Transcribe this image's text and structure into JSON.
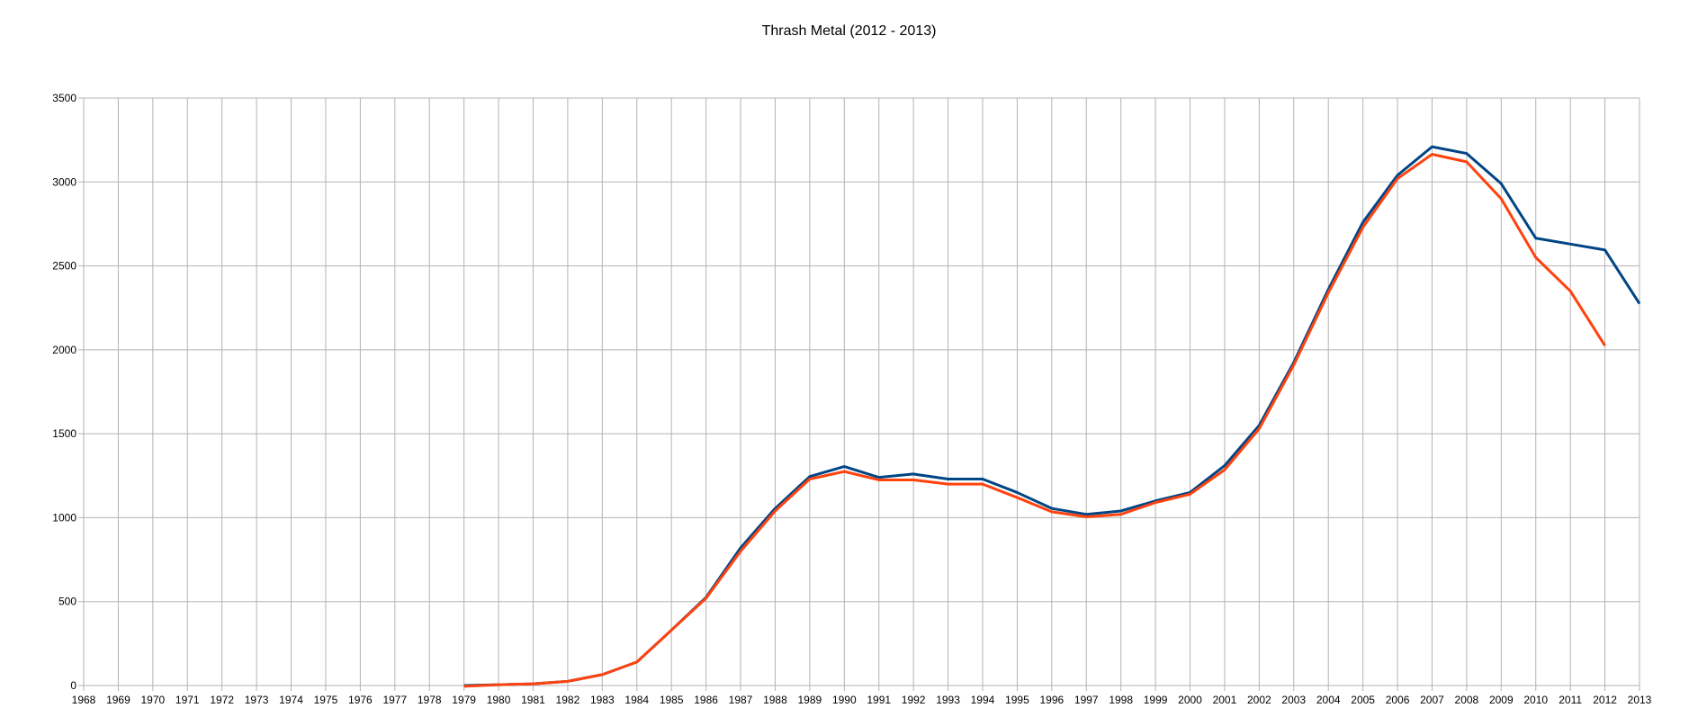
{
  "chart_data": {
    "type": "line",
    "title": "Thrash Metal (2012 - 2013)",
    "xlabel": "",
    "ylabel": "",
    "x": [
      1968,
      1969,
      1970,
      1971,
      1972,
      1973,
      1974,
      1975,
      1976,
      1977,
      1978,
      1979,
      1980,
      1981,
      1982,
      1983,
      1984,
      1985,
      1986,
      1987,
      1988,
      1989,
      1990,
      1991,
      1992,
      1993,
      1994,
      1995,
      1996,
      1997,
      1998,
      1999,
      2000,
      2001,
      2002,
      2003,
      2004,
      2005,
      2006,
      2007,
      2008,
      2009,
      2010,
      2011,
      2012,
      2013
    ],
    "xlim": [
      1968,
      2013
    ],
    "ylim": [
      0,
      3500
    ],
    "yticks": [
      0,
      500,
      1000,
      1500,
      2000,
      2500,
      3000,
      3500
    ],
    "grid": true,
    "legend": "none",
    "series": [
      {
        "color": "#004586",
        "points": [
          [
            1979,
            0
          ],
          [
            1980,
            5
          ],
          [
            1981,
            10
          ],
          [
            1982,
            25
          ],
          [
            1983,
            65
          ],
          [
            1984,
            140
          ],
          [
            1985,
            330
          ],
          [
            1986,
            525
          ],
          [
            1987,
            820
          ],
          [
            1988,
            1055
          ],
          [
            1989,
            1245
          ],
          [
            1990,
            1305
          ],
          [
            1991,
            1240
          ],
          [
            1992,
            1260
          ],
          [
            1993,
            1230
          ],
          [
            1994,
            1230
          ],
          [
            1995,
            1150
          ],
          [
            1996,
            1055
          ],
          [
            1997,
            1020
          ],
          [
            1998,
            1040
          ],
          [
            1999,
            1100
          ],
          [
            2000,
            1150
          ],
          [
            2001,
            1310
          ],
          [
            2002,
            1550
          ],
          [
            2003,
            1925
          ],
          [
            2004,
            2360
          ],
          [
            2005,
            2760
          ],
          [
            2006,
            3040
          ],
          [
            2007,
            3210
          ],
          [
            2008,
            3170
          ],
          [
            2009,
            2990
          ],
          [
            2010,
            2665
          ],
          [
            2011,
            2630
          ],
          [
            2012,
            2595
          ],
          [
            2013,
            2275
          ]
        ]
      },
      {
        "color": "#ff420e",
        "points": [
          [
            1979,
            -5
          ],
          [
            1980,
            5
          ],
          [
            1981,
            10
          ],
          [
            1982,
            25
          ],
          [
            1983,
            65
          ],
          [
            1984,
            140
          ],
          [
            1985,
            330
          ],
          [
            1986,
            520
          ],
          [
            1987,
            800
          ],
          [
            1988,
            1040
          ],
          [
            1989,
            1230
          ],
          [
            1990,
            1275
          ],
          [
            1991,
            1225
          ],
          [
            1992,
            1225
          ],
          [
            1993,
            1200
          ],
          [
            1994,
            1200
          ],
          [
            1995,
            1120
          ],
          [
            1996,
            1035
          ],
          [
            1997,
            1005
          ],
          [
            1998,
            1020
          ],
          [
            1999,
            1090
          ],
          [
            2000,
            1140
          ],
          [
            2001,
            1285
          ],
          [
            2002,
            1530
          ],
          [
            2003,
            1910
          ],
          [
            2004,
            2340
          ],
          [
            2005,
            2730
          ],
          [
            2006,
            3020
          ],
          [
            2007,
            3165
          ],
          [
            2008,
            3120
          ],
          [
            2009,
            2900
          ],
          [
            2010,
            2550
          ],
          [
            2011,
            2350
          ],
          [
            2012,
            2025
          ]
        ]
      }
    ]
  }
}
